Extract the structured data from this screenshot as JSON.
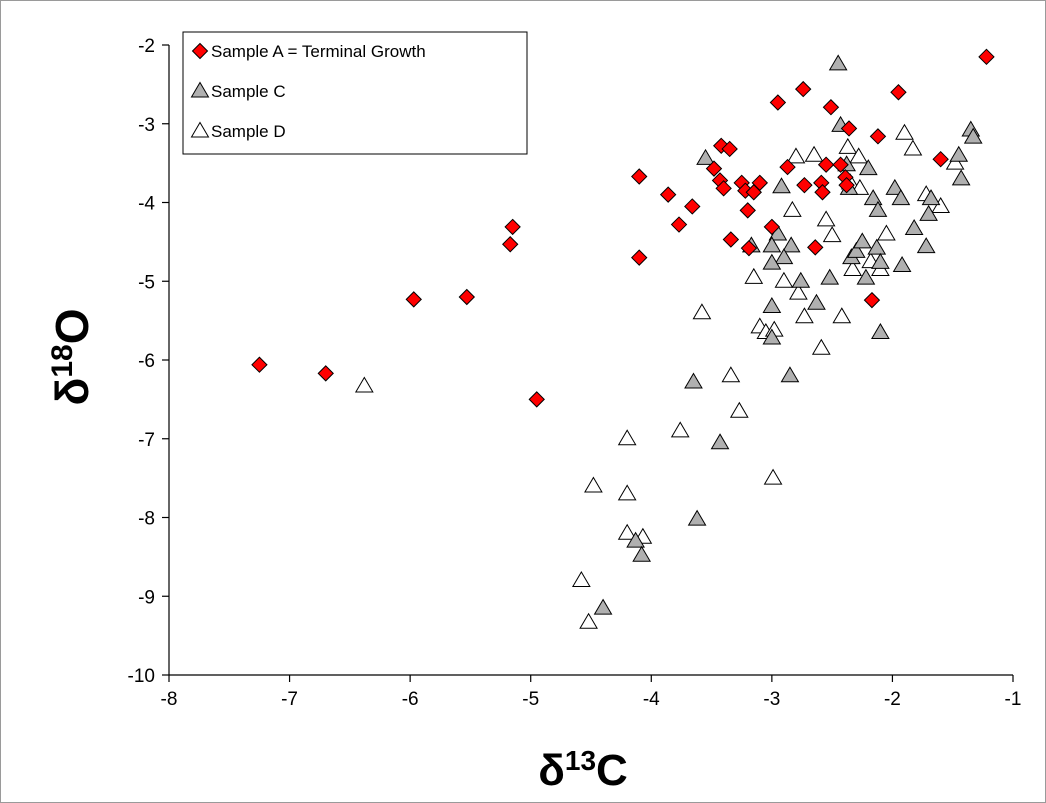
{
  "chart_data": {
    "type": "scatter",
    "xlabel": {
      "base": "δ",
      "sup": "13",
      "tail": "C"
    },
    "ylabel": {
      "base": "δ",
      "sup": "18",
      "tail": "O"
    },
    "xlim": [
      -8,
      -1
    ],
    "ylim": [
      -10,
      -2
    ],
    "x_ticks": [
      -8,
      -7,
      -6,
      -5,
      -4,
      -3,
      -2,
      -1
    ],
    "y_ticks": [
      -10,
      -9,
      -8,
      -7,
      -6,
      -5,
      -4,
      -3,
      -2
    ],
    "grid": false,
    "legend_position": "top-left",
    "series": [
      {
        "name": "Sample A = Terminal Growth",
        "marker": "diamond",
        "color": "#ff0000",
        "points": [
          [
            -7.25,
            -6.06
          ],
          [
            -6.7,
            -6.17
          ],
          [
            -5.97,
            -5.23
          ],
          [
            -5.53,
            -5.2
          ],
          [
            -5.15,
            -4.31
          ],
          [
            -5.17,
            -4.53
          ],
          [
            -4.95,
            -6.5
          ],
          [
            -4.1,
            -3.67
          ],
          [
            -4.1,
            -4.7
          ],
          [
            -3.86,
            -3.9
          ],
          [
            -3.77,
            -4.28
          ],
          [
            -3.66,
            -4.05
          ],
          [
            -3.48,
            -3.57
          ],
          [
            -3.42,
            -3.28
          ],
          [
            -3.43,
            -3.72
          ],
          [
            -3.4,
            -3.82
          ],
          [
            -3.35,
            -3.32
          ],
          [
            -3.34,
            -4.47
          ],
          [
            -3.25,
            -3.75
          ],
          [
            -3.22,
            -3.85
          ],
          [
            -3.2,
            -4.1
          ],
          [
            -3.19,
            -4.58
          ],
          [
            -3.15,
            -3.87
          ],
          [
            -3.1,
            -3.75
          ],
          [
            -3.0,
            -4.31
          ],
          [
            -2.95,
            -2.73
          ],
          [
            -2.87,
            -3.55
          ],
          [
            -2.74,
            -2.56
          ],
          [
            -2.73,
            -3.78
          ],
          [
            -2.64,
            -4.57
          ],
          [
            -2.59,
            -3.75
          ],
          [
            -2.58,
            -3.87
          ],
          [
            -2.55,
            -3.52
          ],
          [
            -2.51,
            -2.79
          ],
          [
            -2.43,
            -3.52
          ],
          [
            -2.39,
            -3.68
          ],
          [
            -2.38,
            -3.78
          ],
          [
            -2.36,
            -3.06
          ],
          [
            -2.17,
            -5.24
          ],
          [
            -2.12,
            -3.16
          ],
          [
            -1.95,
            -2.6
          ],
          [
            -1.6,
            -3.45
          ],
          [
            -1.22,
            -2.15
          ]
        ]
      },
      {
        "name": "Sample C",
        "marker": "triangle",
        "color": "#b0b0b0",
        "points": [
          [
            -4.4,
            -9.15
          ],
          [
            -4.13,
            -8.3
          ],
          [
            -4.08,
            -8.48
          ],
          [
            -3.62,
            -8.02
          ],
          [
            -3.43,
            -7.05
          ],
          [
            -3.65,
            -6.28
          ],
          [
            -2.85,
            -6.2
          ],
          [
            -3.55,
            -3.44
          ],
          [
            -3.17,
            -4.55
          ],
          [
            -2.92,
            -3.8
          ],
          [
            -2.84,
            -4.55
          ],
          [
            -2.76,
            -5.0
          ],
          [
            -2.95,
            -4.4
          ],
          [
            -2.9,
            -4.7
          ],
          [
            -3.0,
            -4.55
          ],
          [
            -3.0,
            -4.77
          ],
          [
            -3.0,
            -5.32
          ],
          [
            -3.0,
            -5.72
          ],
          [
            -2.63,
            -5.28
          ],
          [
            -2.52,
            -4.96
          ],
          [
            -2.45,
            -2.24
          ],
          [
            -2.43,
            -3.02
          ],
          [
            -2.38,
            -3.52
          ],
          [
            -2.36,
            -3.82
          ],
          [
            -2.34,
            -4.7
          ],
          [
            -2.3,
            -4.62
          ],
          [
            -2.25,
            -4.5
          ],
          [
            -2.2,
            -3.57
          ],
          [
            -2.22,
            -4.96
          ],
          [
            -2.16,
            -3.95
          ],
          [
            -2.12,
            -4.1
          ],
          [
            -2.13,
            -4.58
          ],
          [
            -2.1,
            -4.76
          ],
          [
            -2.1,
            -5.65
          ],
          [
            -1.98,
            -3.82
          ],
          [
            -1.93,
            -3.95
          ],
          [
            -1.92,
            -4.8
          ],
          [
            -1.82,
            -4.33
          ],
          [
            -1.72,
            -4.56
          ],
          [
            -1.7,
            -4.15
          ],
          [
            -1.68,
            -3.95
          ],
          [
            -1.45,
            -3.4
          ],
          [
            -1.43,
            -3.7
          ],
          [
            -1.35,
            -3.08
          ],
          [
            -1.33,
            -3.17
          ]
        ]
      },
      {
        "name": "Sample D",
        "marker": "triangle",
        "color": "#ffffff",
        "points": [
          [
            -6.38,
            -6.33
          ],
          [
            -4.58,
            -8.8
          ],
          [
            -4.52,
            -9.33
          ],
          [
            -4.48,
            -7.6
          ],
          [
            -4.2,
            -7.0
          ],
          [
            -4.2,
            -7.7
          ],
          [
            -4.2,
            -8.2
          ],
          [
            -4.07,
            -8.25
          ],
          [
            -3.76,
            -6.9
          ],
          [
            -3.58,
            -5.4
          ],
          [
            -3.34,
            -6.2
          ],
          [
            -3.27,
            -6.65
          ],
          [
            -3.15,
            -4.95
          ],
          [
            -3.1,
            -5.58
          ],
          [
            -3.05,
            -5.65
          ],
          [
            -2.99,
            -7.5
          ],
          [
            -2.98,
            -5.62
          ],
          [
            -2.9,
            -5.0
          ],
          [
            -2.83,
            -4.1
          ],
          [
            -2.8,
            -3.42
          ],
          [
            -2.78,
            -5.15
          ],
          [
            -2.73,
            -5.45
          ],
          [
            -2.65,
            -3.4
          ],
          [
            -2.59,
            -5.85
          ],
          [
            -2.55,
            -4.22
          ],
          [
            -2.5,
            -4.42
          ],
          [
            -2.42,
            -5.45
          ],
          [
            -2.37,
            -3.3
          ],
          [
            -2.35,
            -3.75
          ],
          [
            -2.33,
            -4.85
          ],
          [
            -2.28,
            -3.42
          ],
          [
            -2.27,
            -3.82
          ],
          [
            -2.18,
            -4.75
          ],
          [
            -2.1,
            -4.85
          ],
          [
            -2.05,
            -4.4
          ],
          [
            -1.9,
            -3.12
          ],
          [
            -1.83,
            -3.32
          ],
          [
            -1.72,
            -3.9
          ],
          [
            -1.6,
            -4.05
          ],
          [
            -1.48,
            -3.5
          ]
        ]
      }
    ]
  }
}
